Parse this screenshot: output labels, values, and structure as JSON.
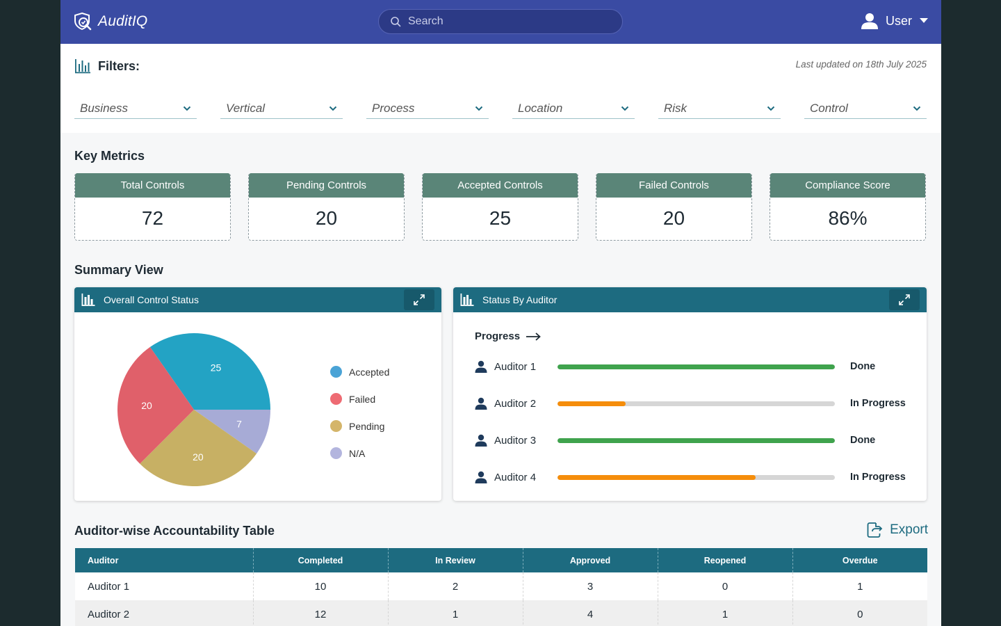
{
  "header": {
    "app_name": "AuditIQ",
    "search_placeholder": "Search",
    "user_label": "User"
  },
  "filters": {
    "title": "Filters:",
    "last_updated": "Last updated on 18th July 2025",
    "items": [
      "Business",
      "Vertical",
      "Process",
      "Location",
      "Risk",
      "Control"
    ]
  },
  "metrics": {
    "title": "Key Metrics",
    "cards": [
      {
        "label": "Total Controls",
        "value": "72"
      },
      {
        "label": "Pending Controls",
        "value": "20"
      },
      {
        "label": "Accepted Controls",
        "value": "25"
      },
      {
        "label": "Failed Controls",
        "value": "20"
      },
      {
        "label": "Compliance Score",
        "value": "86%"
      }
    ]
  },
  "summary": {
    "title": "Summary View",
    "overall_panel_title": "Overall Control Status",
    "auditor_panel_title": "Status By Auditor",
    "progress_label": "Progress"
  },
  "chart_data": {
    "type": "pie",
    "slices": [
      {
        "name": "Accepted",
        "value": 25,
        "color": "#23a3c4"
      },
      {
        "name": "N/A",
        "value": 7,
        "color": "#a7abd6"
      },
      {
        "name": "Pending",
        "value": 20,
        "color": "#c7b064"
      },
      {
        "name": "Failed",
        "value": 20,
        "color": "#e0606a"
      }
    ],
    "legend": [
      {
        "name": "Accepted",
        "color": "#4aa3d6"
      },
      {
        "name": "Failed",
        "color": "#ee6b73"
      },
      {
        "name": "Pending",
        "color": "#d4b56a"
      },
      {
        "name": "N/A",
        "color": "#b3b5de"
      }
    ],
    "legend_position": "right"
  },
  "auditor_status": [
    {
      "name": "Auditor 1",
      "progress": 1.0,
      "status": "Done",
      "color": "#3fa34d"
    },
    {
      "name": "Auditor 2",
      "progress": 0.245,
      "status": "In Progress",
      "color": "#f58d0b"
    },
    {
      "name": "Auditor 3",
      "progress": 1.0,
      "status": "Done",
      "color": "#3fa34d"
    },
    {
      "name": "Auditor 4",
      "progress": 0.715,
      "status": "In Progress",
      "color": "#f58d0b"
    }
  ],
  "table": {
    "title": "Auditor-wise Accountability Table",
    "export_label": "Export",
    "columns": [
      "Auditor",
      "Completed",
      "In Review",
      "Approved",
      "Reopened",
      "Overdue"
    ],
    "rows": [
      [
        "Auditor 1",
        "10",
        "2",
        "3",
        "0",
        "1"
      ],
      [
        "Auditor 2",
        "12",
        "1",
        "4",
        "1",
        "0"
      ]
    ]
  }
}
